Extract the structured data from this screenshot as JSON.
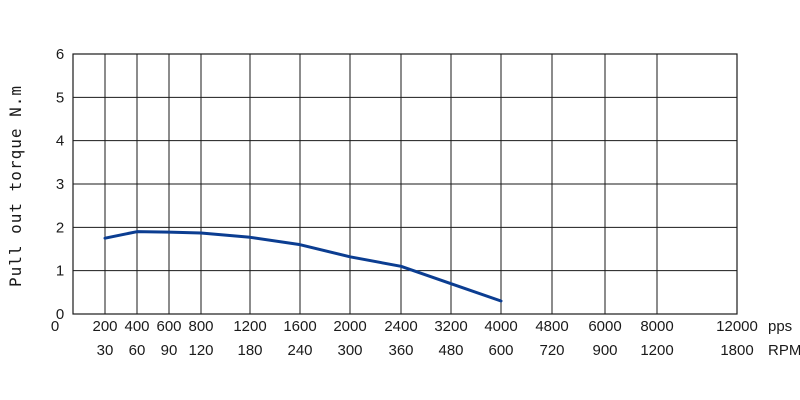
{
  "chart_data": {
    "type": "line",
    "title": "",
    "ylabel": "Pull out torque N.m",
    "ylim": [
      0,
      6
    ],
    "yticks": [
      "0",
      "1",
      "2",
      "3",
      "4",
      "5",
      "6"
    ],
    "x_unit_top": "pps",
    "x_unit_bottom": "RPM",
    "pps_ticks": [
      "200",
      "400",
      "600",
      "800",
      "1200",
      "1600",
      "2000",
      "2400",
      "3200",
      "4000",
      "4800",
      "6000",
      "8000",
      "12000"
    ],
    "rpm_ticks": [
      "30",
      "60",
      "90",
      "120",
      "180",
      "240",
      "300",
      "360",
      "480",
      "600",
      "720",
      "900",
      "1200",
      "1800"
    ],
    "grid": true,
    "series": [
      {
        "x": [
          "200",
          "400",
          "600",
          "800",
          "1200",
          "1600",
          "2000",
          "2400",
          "3200",
          "4000"
        ],
        "values": [
          1.75,
          1.9,
          1.89,
          1.87,
          1.77,
          1.6,
          1.32,
          1.1,
          0.7,
          0.3
        ],
        "color": "#0b3d91"
      }
    ]
  }
}
